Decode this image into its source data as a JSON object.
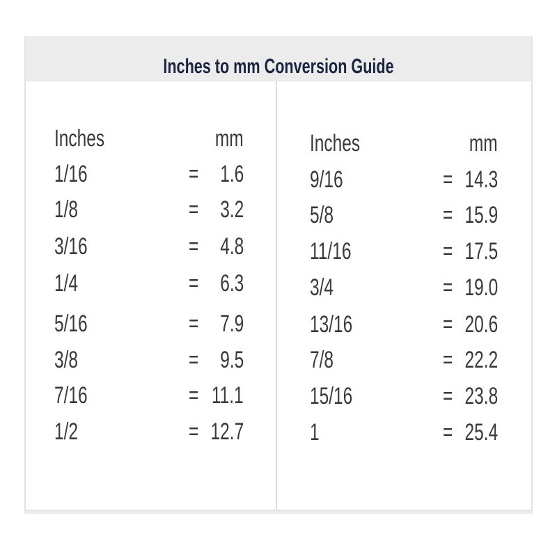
{
  "title": "Inches to mm Conversion Guide",
  "columns": [
    {
      "header_inches": "Inches",
      "header_mm": "mm",
      "rows": [
        {
          "inches": "1/16",
          "eq": "=",
          "mm": "1.6"
        },
        {
          "inches": "1/8",
          "eq": "=",
          "mm": "3.2"
        },
        {
          "inches": "3/16",
          "eq": "=",
          "mm": "4.8"
        },
        {
          "inches": "1/4",
          "eq": "=",
          "mm": "6.3"
        },
        {
          "inches": "5/16",
          "eq": "=",
          "mm": "7.9"
        },
        {
          "inches": "3/8",
          "eq": "=",
          "mm": "9.5"
        },
        {
          "inches": "7/16",
          "eq": "=",
          "mm": "11.1"
        },
        {
          "inches": "1/2",
          "eq": "=",
          "mm": "12.7"
        }
      ]
    },
    {
      "header_inches": "Inches",
      "header_mm": "mm",
      "rows": [
        {
          "inches": "9/16",
          "eq": "=",
          "mm": "14.3"
        },
        {
          "inches": "5/8",
          "eq": "=",
          "mm": "15.9"
        },
        {
          "inches": "11/16",
          "eq": "=",
          "mm": "17.5"
        },
        {
          "inches": "3/4",
          "eq": "=",
          "mm": "19.0"
        },
        {
          "inches": "13/16",
          "eq": "=",
          "mm": "20.6"
        },
        {
          "inches": "7/8",
          "eq": "=",
          "mm": "22.2"
        },
        {
          "inches": "15/16",
          "eq": "=",
          "mm": "23.8"
        },
        {
          "inches": "1",
          "eq": "=",
          "mm": "25.4"
        }
      ]
    }
  ]
}
